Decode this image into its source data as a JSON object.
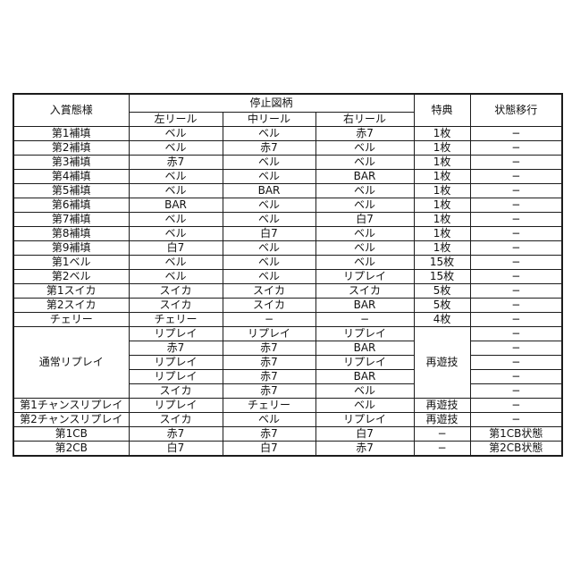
{
  "table": {
    "header": {
      "winning_mode": "入賞態様",
      "stop_symbols": "停止図柄",
      "left_reel": "左リール",
      "middle_reel": "中リール",
      "right_reel": "右リール",
      "bonus": "特典",
      "state_transition": "状態移行"
    },
    "border_color": "#1c1c1c",
    "rows": [
      {
        "cells": [
          {
            "t": "第1補填"
          },
          {
            "t": "ベル"
          },
          {
            "t": "ベル"
          },
          {
            "t": "赤7"
          },
          {
            "t": "1枚"
          },
          {
            "t": "−"
          }
        ]
      },
      {
        "cells": [
          {
            "t": "第2補填"
          },
          {
            "t": "ベル"
          },
          {
            "t": "赤7"
          },
          {
            "t": "ベル"
          },
          {
            "t": "1枚"
          },
          {
            "t": "−"
          }
        ]
      },
      {
        "cells": [
          {
            "t": "第3補填"
          },
          {
            "t": "赤7"
          },
          {
            "t": "ベル"
          },
          {
            "t": "ベル"
          },
          {
            "t": "1枚"
          },
          {
            "t": "−"
          }
        ]
      },
      {
        "cells": [
          {
            "t": "第4補填"
          },
          {
            "t": "ベル"
          },
          {
            "t": "ベル"
          },
          {
            "t": "BAR"
          },
          {
            "t": "1枚"
          },
          {
            "t": "−"
          }
        ]
      },
      {
        "cells": [
          {
            "t": "第5補填"
          },
          {
            "t": "ベル"
          },
          {
            "t": "BAR"
          },
          {
            "t": "ベル"
          },
          {
            "t": "1枚"
          },
          {
            "t": "−"
          }
        ]
      },
      {
        "cells": [
          {
            "t": "第6補填"
          },
          {
            "t": "BAR"
          },
          {
            "t": "ベル"
          },
          {
            "t": "ベル"
          },
          {
            "t": "1枚"
          },
          {
            "t": "−"
          }
        ]
      },
      {
        "cells": [
          {
            "t": "第7補填"
          },
          {
            "t": "ベル"
          },
          {
            "t": "ベル"
          },
          {
            "t": "白7"
          },
          {
            "t": "1枚"
          },
          {
            "t": "−"
          }
        ]
      },
      {
        "cells": [
          {
            "t": "第8補填"
          },
          {
            "t": "ベル"
          },
          {
            "t": "白7"
          },
          {
            "t": "ベル"
          },
          {
            "t": "1枚"
          },
          {
            "t": "−"
          }
        ]
      },
      {
        "cells": [
          {
            "t": "第9補填"
          },
          {
            "t": "白7"
          },
          {
            "t": "ベル"
          },
          {
            "t": "ベル"
          },
          {
            "t": "1枚"
          },
          {
            "t": "−"
          }
        ]
      },
      {
        "cells": [
          {
            "t": "第1ベル"
          },
          {
            "t": "ベル"
          },
          {
            "t": "ベル"
          },
          {
            "t": "ベル"
          },
          {
            "t": "15枚"
          },
          {
            "t": "−"
          }
        ]
      },
      {
        "cells": [
          {
            "t": "第2ベル"
          },
          {
            "t": "ベル"
          },
          {
            "t": "ベル"
          },
          {
            "t": "リプレイ"
          },
          {
            "t": "15枚"
          },
          {
            "t": "−"
          }
        ]
      },
      {
        "cells": [
          {
            "t": "第1スイカ"
          },
          {
            "t": "スイカ"
          },
          {
            "t": "スイカ"
          },
          {
            "t": "スイカ"
          },
          {
            "t": "5枚"
          },
          {
            "t": "−"
          }
        ]
      },
      {
        "cells": [
          {
            "t": "第2スイカ"
          },
          {
            "t": "スイカ"
          },
          {
            "t": "スイカ"
          },
          {
            "t": "BAR"
          },
          {
            "t": "5枚"
          },
          {
            "t": "−"
          }
        ]
      },
      {
        "cells": [
          {
            "t": "チェリー"
          },
          {
            "t": "チェリー"
          },
          {
            "t": "−"
          },
          {
            "t": "−"
          },
          {
            "t": "4枚"
          },
          {
            "t": "−"
          }
        ]
      },
      {
        "cells": [
          {
            "t": "通常リプレイ",
            "rowspan": 5
          },
          {
            "t": "リプレイ"
          },
          {
            "t": "リプレイ"
          },
          {
            "t": "リプレイ"
          },
          {
            "t": "再遊技",
            "rowspan": 5
          },
          {
            "t": "−"
          }
        ]
      },
      {
        "cells": [
          {
            "t": "赤7"
          },
          {
            "t": "赤7"
          },
          {
            "t": "BAR"
          },
          {
            "t": "−"
          }
        ]
      },
      {
        "cells": [
          {
            "t": "リプレイ"
          },
          {
            "t": "赤7"
          },
          {
            "t": "リプレイ"
          },
          {
            "t": "−"
          }
        ]
      },
      {
        "cells": [
          {
            "t": "リプレイ"
          },
          {
            "t": "赤7"
          },
          {
            "t": "BAR"
          },
          {
            "t": "−"
          }
        ]
      },
      {
        "cells": [
          {
            "t": "スイカ"
          },
          {
            "t": "赤7"
          },
          {
            "t": "ベル"
          },
          {
            "t": "−"
          }
        ]
      },
      {
        "cells": [
          {
            "t": "第1チャンスリプレイ"
          },
          {
            "t": "リプレイ"
          },
          {
            "t": "チェリー"
          },
          {
            "t": "ベル"
          },
          {
            "t": "再遊技"
          },
          {
            "t": "−"
          }
        ]
      },
      {
        "cells": [
          {
            "t": "第2チャンスリプレイ"
          },
          {
            "t": "スイカ"
          },
          {
            "t": "ベル"
          },
          {
            "t": "リプレイ"
          },
          {
            "t": "再遊技"
          },
          {
            "t": "−"
          }
        ]
      },
      {
        "cells": [
          {
            "t": "第1CB"
          },
          {
            "t": "赤7"
          },
          {
            "t": "赤7"
          },
          {
            "t": "白7"
          },
          {
            "t": "−"
          },
          {
            "t": "第1CB状態"
          }
        ]
      },
      {
        "cells": [
          {
            "t": "第2CB"
          },
          {
            "t": "白7"
          },
          {
            "t": "白7"
          },
          {
            "t": "赤7"
          },
          {
            "t": "−"
          },
          {
            "t": "第2CB状態"
          }
        ]
      }
    ]
  }
}
